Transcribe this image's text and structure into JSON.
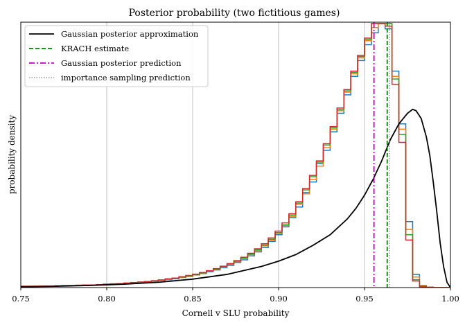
{
  "chart_data": {
    "type": "histogram",
    "title": "Posterior probability (two fictitious games)",
    "xlabel": "Cornell v SLU probability",
    "ylabel": "probability density",
    "xlim": [
      0.75,
      1.0
    ],
    "xticks": [
      0.75,
      0.8,
      0.85,
      0.9,
      0.95,
      1.0
    ],
    "xtick_labels": [
      "0.75",
      "0.80",
      "0.85",
      "0.90",
      "0.95",
      "1.00"
    ],
    "grid": "vertical",
    "legend_position": "top-left",
    "legend": [
      {
        "label": "Gaussian posterior approximation",
        "color": "#000000",
        "style": "solid"
      },
      {
        "label": "KRACH estimate",
        "color": "#008000",
        "style": "dashed"
      },
      {
        "label": "Gaussian posterior prediction",
        "color": "#bf00bf",
        "style": "dashdot"
      },
      {
        "label": "importance sampling prediction",
        "color": "#808080",
        "style": "dotted"
      }
    ],
    "vertical_lines": [
      {
        "x": 0.9632,
        "color": "#008000",
        "style": "dashed"
      },
      {
        "x": 0.9555,
        "color": "#bf00bf",
        "style": "dashdot"
      },
      {
        "x": 0.9645,
        "color": "#808080",
        "style": "dotted"
      }
    ],
    "histogram_colors": [
      "#1f77b4",
      "#ff7f0e",
      "#2ca02c",
      "#d62728"
    ],
    "bin_start": 0.75,
    "bin_width": 0.004,
    "histograms": [
      [
        0.005,
        0.005,
        0.005,
        0.006,
        0.006,
        0.007,
        0.007,
        0.008,
        0.008,
        0.009,
        0.01,
        0.011,
        0.012,
        0.013,
        0.014,
        0.016,
        0.018,
        0.02,
        0.022,
        0.024,
        0.027,
        0.03,
        0.033,
        0.038,
        0.042,
        0.048,
        0.053,
        0.06,
        0.067,
        0.075,
        0.084,
        0.095,
        0.105,
        0.12,
        0.135,
        0.152,
        0.175,
        0.2,
        0.23,
        0.265,
        0.305,
        0.36,
        0.4,
        0.47,
        0.52,
        0.59,
        0.66,
        0.73,
        0.8,
        0.86,
        0.92,
        0.965,
        1.0,
        0.98,
        0.82,
        0.62,
        0.25,
        0.05,
        0.008,
        0.002,
        0.0,
        0.0,
        0.0
      ],
      [
        0.005,
        0.005,
        0.006,
        0.006,
        0.006,
        0.007,
        0.008,
        0.008,
        0.009,
        0.009,
        0.01,
        0.011,
        0.012,
        0.013,
        0.015,
        0.016,
        0.018,
        0.02,
        0.022,
        0.025,
        0.028,
        0.031,
        0.035,
        0.039,
        0.043,
        0.05,
        0.055,
        0.062,
        0.07,
        0.078,
        0.088,
        0.098,
        0.11,
        0.125,
        0.14,
        0.158,
        0.18,
        0.205,
        0.235,
        0.27,
        0.315,
        0.355,
        0.41,
        0.46,
        0.53,
        0.6,
        0.67,
        0.74,
        0.81,
        0.87,
        0.935,
        0.985,
        1.0,
        1.0,
        0.8,
        0.6,
        0.22,
        0.04,
        0.006,
        0.001,
        0.0,
        0.0,
        0.0
      ],
      [
        0.005,
        0.005,
        0.005,
        0.006,
        0.006,
        0.007,
        0.007,
        0.008,
        0.009,
        0.009,
        0.01,
        0.011,
        0.012,
        0.014,
        0.015,
        0.017,
        0.019,
        0.021,
        0.023,
        0.026,
        0.029,
        0.032,
        0.036,
        0.04,
        0.045,
        0.05,
        0.056,
        0.063,
        0.071,
        0.08,
        0.09,
        0.1,
        0.113,
        0.127,
        0.143,
        0.161,
        0.183,
        0.208,
        0.238,
        0.275,
        0.32,
        0.37,
        0.42,
        0.475,
        0.54,
        0.605,
        0.675,
        0.745,
        0.815,
        0.875,
        0.94,
        1.0,
        1.0,
        1.0,
        0.79,
        0.58,
        0.2,
        0.03,
        0.004,
        0.001,
        0.0,
        0.0,
        0.0
      ],
      [
        0.005,
        0.005,
        0.005,
        0.006,
        0.006,
        0.007,
        0.008,
        0.008,
        0.009,
        0.01,
        0.01,
        0.011,
        0.013,
        0.014,
        0.015,
        0.017,
        0.019,
        0.021,
        0.023,
        0.026,
        0.029,
        0.033,
        0.036,
        0.041,
        0.046,
        0.051,
        0.057,
        0.064,
        0.072,
        0.081,
        0.091,
        0.102,
        0.115,
        0.13,
        0.147,
        0.166,
        0.188,
        0.214,
        0.245,
        0.28,
        0.325,
        0.375,
        0.425,
        0.48,
        0.545,
        0.61,
        0.68,
        0.75,
        0.82,
        0.88,
        0.945,
        1.0,
        1.0,
        0.99,
        0.77,
        0.55,
        0.18,
        0.025,
        0.003,
        0.001,
        0.0,
        0.0,
        0.0
      ]
    ],
    "curve": {
      "name": "Gaussian posterior approximation",
      "x": [
        0.75,
        0.77,
        0.79,
        0.81,
        0.83,
        0.85,
        0.87,
        0.89,
        0.9,
        0.91,
        0.92,
        0.93,
        0.94,
        0.945,
        0.95,
        0.955,
        0.96,
        0.965,
        0.97,
        0.975,
        0.978,
        0.98,
        0.983,
        0.986,
        0.988,
        0.99,
        0.992,
        0.994,
        0.996,
        0.998,
        1.0
      ],
      "y": [
        0.003,
        0.005,
        0.008,
        0.013,
        0.02,
        0.032,
        0.05,
        0.08,
        0.1,
        0.125,
        0.16,
        0.2,
        0.26,
        0.3,
        0.35,
        0.41,
        0.48,
        0.56,
        0.62,
        0.66,
        0.675,
        0.67,
        0.64,
        0.57,
        0.5,
        0.4,
        0.29,
        0.17,
        0.08,
        0.02,
        0.0
      ]
    }
  }
}
